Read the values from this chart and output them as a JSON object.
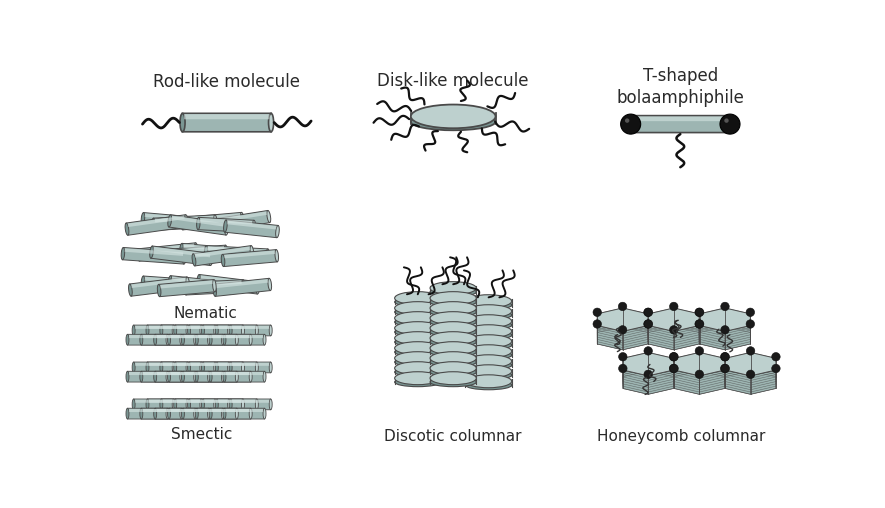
{
  "bg_color": "#ffffff",
  "cyl_face": "#9db5b2",
  "cyl_dark": "#7a9693",
  "cyl_light": "#bdd0ce",
  "cyl_edge": "#4a4a4a",
  "disk_face": "#9db5b2",
  "disk_top": "#bdd0ce",
  "disk_bot": "#7a9693",
  "sphere_color": "#1a1a1a",
  "line_color": "#111111",
  "text_color": "#2a2a2a",
  "labels": {
    "rod_title": "Rod-like molecule",
    "disk_title": "Disk-like molecule",
    "tshape_title": "T-shaped\nbolaamphiphile",
    "nematic": "Nematic",
    "smectic": "Smectic",
    "discotic": "Discotic columnar",
    "honeycomb": "Honeycomb columnar"
  },
  "font_size_title": 12,
  "font_size_label": 11
}
